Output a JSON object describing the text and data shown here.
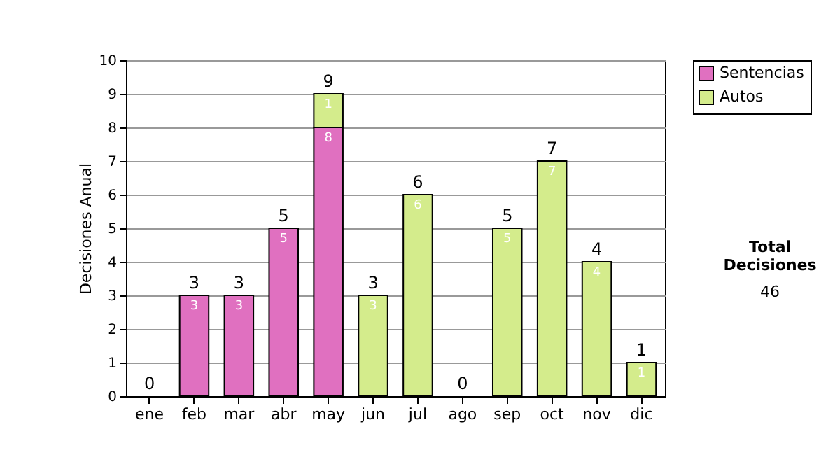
{
  "chart_data": {
    "type": "bar",
    "stacked": true,
    "ylabel": "Decisiones Anual",
    "categories": [
      "ene",
      "feb",
      "mar",
      "abr",
      "may",
      "jun",
      "jul",
      "ago",
      "sep",
      "oct",
      "nov",
      "dic"
    ],
    "series": [
      {
        "name": "Sentencias",
        "color": "#e070c0",
        "values": [
          0,
          3,
          3,
          5,
          8,
          0,
          0,
          0,
          0,
          0,
          0,
          0
        ],
        "value_labels": [
          null,
          "3",
          "3",
          "5",
          "8",
          null,
          null,
          null,
          null,
          null,
          null,
          null
        ]
      },
      {
        "name": "Autos",
        "color": "#d4ec8c",
        "values": [
          0,
          0,
          0,
          0,
          1,
          3,
          6,
          0,
          5,
          7,
          4,
          1
        ],
        "value_labels": [
          null,
          null,
          null,
          null,
          "1",
          "3",
          "6",
          null,
          "5",
          "7",
          "4",
          "1"
        ]
      }
    ],
    "totals": [
      "0",
      "3",
      "3",
      "5",
      "9",
      "3",
      "6",
      "0",
      "5",
      "7",
      "4",
      "1"
    ],
    "ylim": [
      0,
      10
    ],
    "yticks": [
      0,
      1,
      2,
      3,
      4,
      5,
      6,
      7,
      8,
      9,
      10
    ],
    "grid": "y",
    "legend": "right",
    "annotations": [
      "Total Decisiones",
      "46"
    ]
  }
}
